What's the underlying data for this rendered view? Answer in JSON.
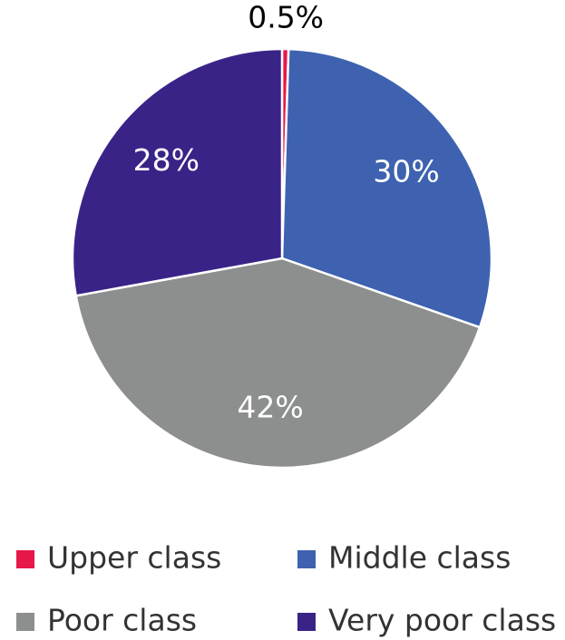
{
  "chart_data": {
    "type": "pie",
    "categories": [
      "Upper class",
      "Middle class",
      "Poor class",
      "Very poor class"
    ],
    "values": [
      0.5,
      30,
      42,
      28
    ],
    "value_labels": [
      "0.5%",
      "30%",
      "42%",
      "28%"
    ],
    "colors": [
      "#e8174a",
      "#3e62b0",
      "#8c8f8d",
      "#3a2387"
    ],
    "legend": "bottom"
  }
}
